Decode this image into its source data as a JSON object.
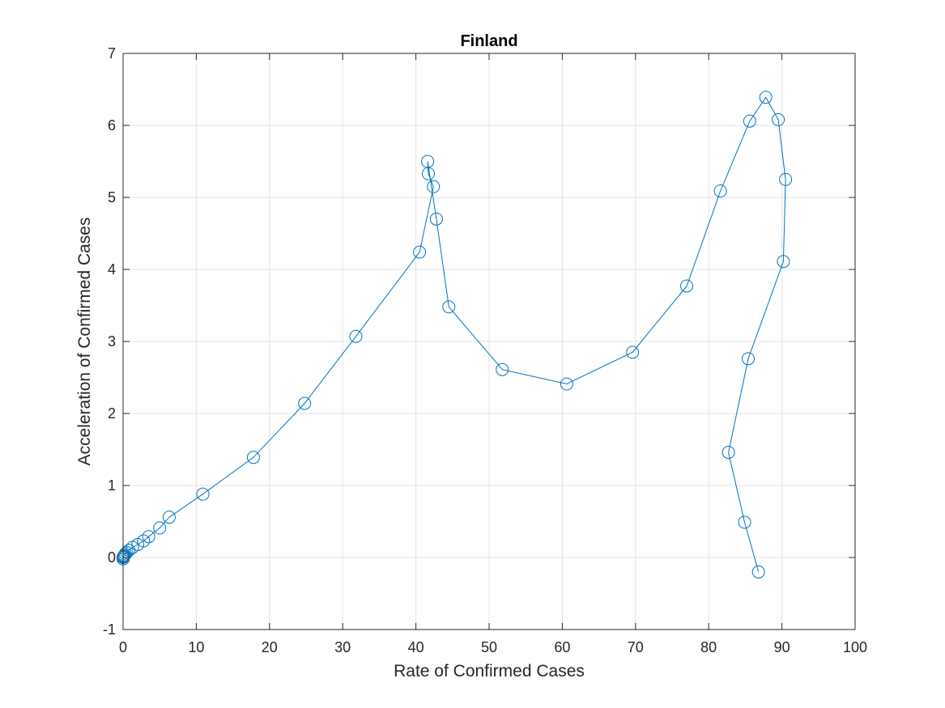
{
  "chart_data": {
    "type": "line",
    "title": "Finland",
    "xlabel": "Rate of Confirmed Cases",
    "ylabel": "Acceleration of Confirmed Cases",
    "xlim": [
      0,
      100
    ],
    "ylim": [
      -1,
      7
    ],
    "xticks": [
      "0",
      "10",
      "20",
      "30",
      "40",
      "50",
      "60",
      "70",
      "80",
      "90",
      "100"
    ],
    "yticks": [
      "-1",
      "0",
      "1",
      "2",
      "3",
      "4",
      "5",
      "6",
      "7"
    ],
    "grid": true,
    "marker": "circle",
    "color": "#0072BD",
    "series": [
      {
        "x": [
          0,
          0,
          0.05,
          0.1,
          0.2,
          0.3,
          0.5,
          0.8,
          1.3,
          2.0,
          2.8,
          3.5,
          5.0,
          6.3,
          10.9,
          17.8,
          24.8,
          31.8,
          40.5,
          42.4,
          41.7,
          41.6,
          42.8,
          44.5,
          51.8,
          60.6,
          69.6,
          77.0,
          81.6,
          85.6,
          87.8,
          89.5,
          90.5,
          90.2,
          85.4,
          82.7,
          84.9,
          86.8
        ],
        "y": [
          -0.02,
          0.0,
          0.01,
          0.02,
          0.03,
          0.05,
          0.07,
          0.1,
          0.14,
          0.18,
          0.23,
          0.29,
          0.41,
          0.56,
          0.88,
          1.39,
          2.14,
          3.07,
          4.24,
          5.15,
          5.33,
          5.5,
          4.7,
          3.48,
          2.61,
          2.41,
          2.85,
          3.77,
          5.09,
          6.06,
          6.39,
          6.08,
          5.25,
          4.11,
          2.76,
          1.46,
          0.49,
          -0.2
        ]
      }
    ]
  }
}
